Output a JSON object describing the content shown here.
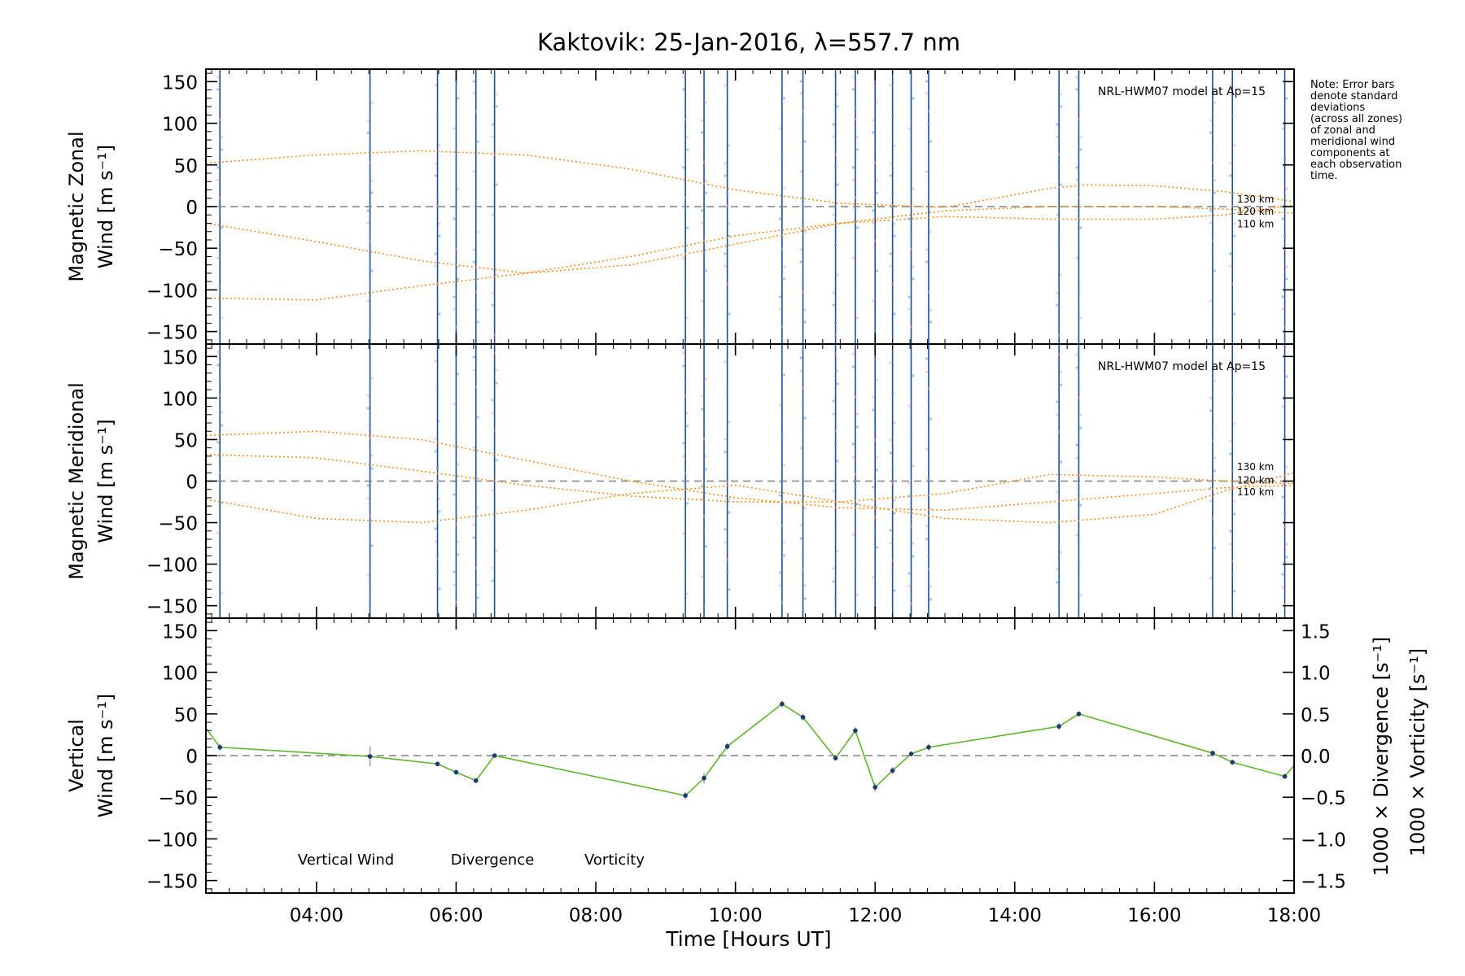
{
  "title": "Kaktovik: 25-Jan-2016, λ=557.7 nm",
  "note": [
    "Note: Error bars",
    "denote standard",
    "deviations",
    "(across all zones)",
    "of zonal and",
    "meridional wind",
    "components at",
    "each observation",
    "time."
  ],
  "model_label": "NRL-HWM07 model at Ap=15",
  "xlabel": "Time [Hours UT]",
  "xticks": [
    "04:00",
    "06:00",
    "08:00",
    "10:00",
    "12:00",
    "14:00",
    "16:00",
    "18:00"
  ],
  "colors": {
    "model": "#ff8c1a",
    "vertical": "#5cb82a",
    "divergence": "#4aa3d8",
    "vorticity": "#ff3b8a",
    "bars": "#1f4e8c",
    "zero": "#808080"
  },
  "chart_data": [
    {
      "type": "line",
      "panel": "zonal",
      "ylabel": "Magnetic Zonal Wind [m s⁻¹]",
      "ylim": [
        -165,
        165
      ],
      "yticks": [
        -150,
        -100,
        -50,
        0,
        50,
        100,
        150
      ],
      "xlim": [
        "02:25",
        "18:00"
      ],
      "obs_times": [
        "02:37",
        "04:46",
        "05:44",
        "06:00",
        "06:17",
        "06:33",
        "09:17",
        "09:33",
        "09:53",
        "10:40",
        "10:58",
        "11:26",
        "11:43",
        "12:00",
        "12:15",
        "12:31",
        "12:46",
        "14:38",
        "14:55",
        "16:50",
        "17:07",
        "17:52"
      ],
      "series": [
        {
          "name": "130 km",
          "x": [
            "02:25",
            "04:00",
            "05:30",
            "07:00",
            "08:30",
            "10:00",
            "11:30",
            "13:00",
            "14:30",
            "15:00",
            "16:00",
            "17:00",
            "18:00"
          ],
          "values": [
            52,
            62,
            67,
            62,
            45,
            20,
            4,
            -1,
            22,
            26,
            25,
            18,
            6
          ]
        },
        {
          "name": "120 km",
          "x": [
            "02:25",
            "04:00",
            "05:30",
            "07:00",
            "08:30",
            "10:00",
            "11:30",
            "13:00",
            "14:30",
            "16:00",
            "17:00",
            "18:00"
          ],
          "values": [
            -20,
            -42,
            -65,
            -80,
            -70,
            -45,
            -20,
            -5,
            0,
            0,
            -3,
            -8
          ]
        },
        {
          "name": "110 km",
          "x": [
            "02:25",
            "04:00",
            "05:30",
            "07:00",
            "08:30",
            "10:00",
            "11:30",
            "13:00",
            "14:30",
            "16:00",
            "17:00",
            "18:00"
          ],
          "values": [
            -110,
            -112,
            -95,
            -80,
            -60,
            -35,
            -20,
            -12,
            -15,
            -15,
            -10,
            2
          ]
        }
      ],
      "series_labels": [
        "130 km",
        "120 km",
        "110 km"
      ]
    },
    {
      "type": "line",
      "panel": "meridional",
      "ylabel": "Magnetic Meridional Wind [m s⁻¹]",
      "ylim": [
        -165,
        165
      ],
      "yticks": [
        -150,
        -100,
        -50,
        0,
        50,
        100,
        150
      ],
      "xlim": [
        "02:25",
        "18:00"
      ],
      "series": [
        {
          "name": "130 km",
          "x": [
            "02:25",
            "04:00",
            "05:30",
            "07:00",
            "08:30",
            "10:00",
            "11:30",
            "13:00",
            "14:30",
            "16:00",
            "17:00",
            "18:00"
          ],
          "values": [
            55,
            60,
            50,
            25,
            0,
            -20,
            -32,
            -35,
            -25,
            -15,
            -8,
            -5
          ]
        },
        {
          "name": "120 km",
          "x": [
            "02:25",
            "04:00",
            "05:30",
            "07:00",
            "08:30",
            "10:00",
            "11:30",
            "13:00",
            "14:30",
            "16:00",
            "17:00",
            "18:00"
          ],
          "values": [
            32,
            28,
            12,
            -5,
            -18,
            -25,
            -25,
            -15,
            8,
            5,
            0,
            -3
          ]
        },
        {
          "name": "110 km",
          "x": [
            "02:25",
            "04:00",
            "05:30",
            "07:00",
            "08:30",
            "10:00",
            "11:30",
            "13:00",
            "14:30",
            "16:00",
            "17:00",
            "18:00"
          ],
          "values": [
            -22,
            -45,
            -50,
            -35,
            -15,
            -5,
            -25,
            -45,
            -50,
            -40,
            -12,
            10
          ]
        }
      ],
      "series_labels": [
        "130 km",
        "120 km",
        "110 km"
      ]
    },
    {
      "type": "line",
      "panel": "vertical",
      "ylabel": "Vertical Wind [m s⁻¹]",
      "ylim": [
        -165,
        165
      ],
      "yticks": [
        -150,
        -100,
        -50,
        0,
        50,
        100,
        150
      ],
      "y2label_div": "1000 × Divergence [s⁻¹]",
      "y2label_vort": "1000 × Vorticity [s⁻¹]",
      "y2lim": [
        -1.65,
        1.65
      ],
      "y2ticks": [
        "1.5",
        "1.0",
        "0.5",
        "0.0",
        "−0.5",
        "−1.0",
        "−1.5"
      ],
      "legend": [
        "Vertical Wind",
        "Divergence",
        "Vorticity"
      ],
      "series": [
        {
          "name": "Vertical Wind",
          "x": [
            "02:25",
            "02:37",
            "04:46",
            "05:44",
            "06:00",
            "06:17",
            "06:33",
            "09:17",
            "09:33",
            "09:53",
            "10:40",
            "10:58",
            "11:26",
            "11:43",
            "12:00",
            "12:15",
            "12:31",
            "12:46",
            "14:38",
            "14:55",
            "16:50",
            "17:07",
            "17:52",
            "18:00"
          ],
          "values": [
            33,
            10,
            -1,
            -10,
            -20,
            -30,
            0,
            -48,
            -27,
            11,
            62,
            46,
            -3,
            30,
            -38,
            -18,
            2,
            10,
            35,
            50,
            3,
            -8,
            -25,
            -12
          ],
          "errors": [
            0,
            4,
            12,
            3,
            3,
            3,
            2,
            4,
            6,
            4,
            4,
            4,
            3,
            4,
            5,
            4,
            3,
            4,
            4,
            3,
            3,
            3,
            3,
            0
          ]
        }
      ]
    }
  ]
}
